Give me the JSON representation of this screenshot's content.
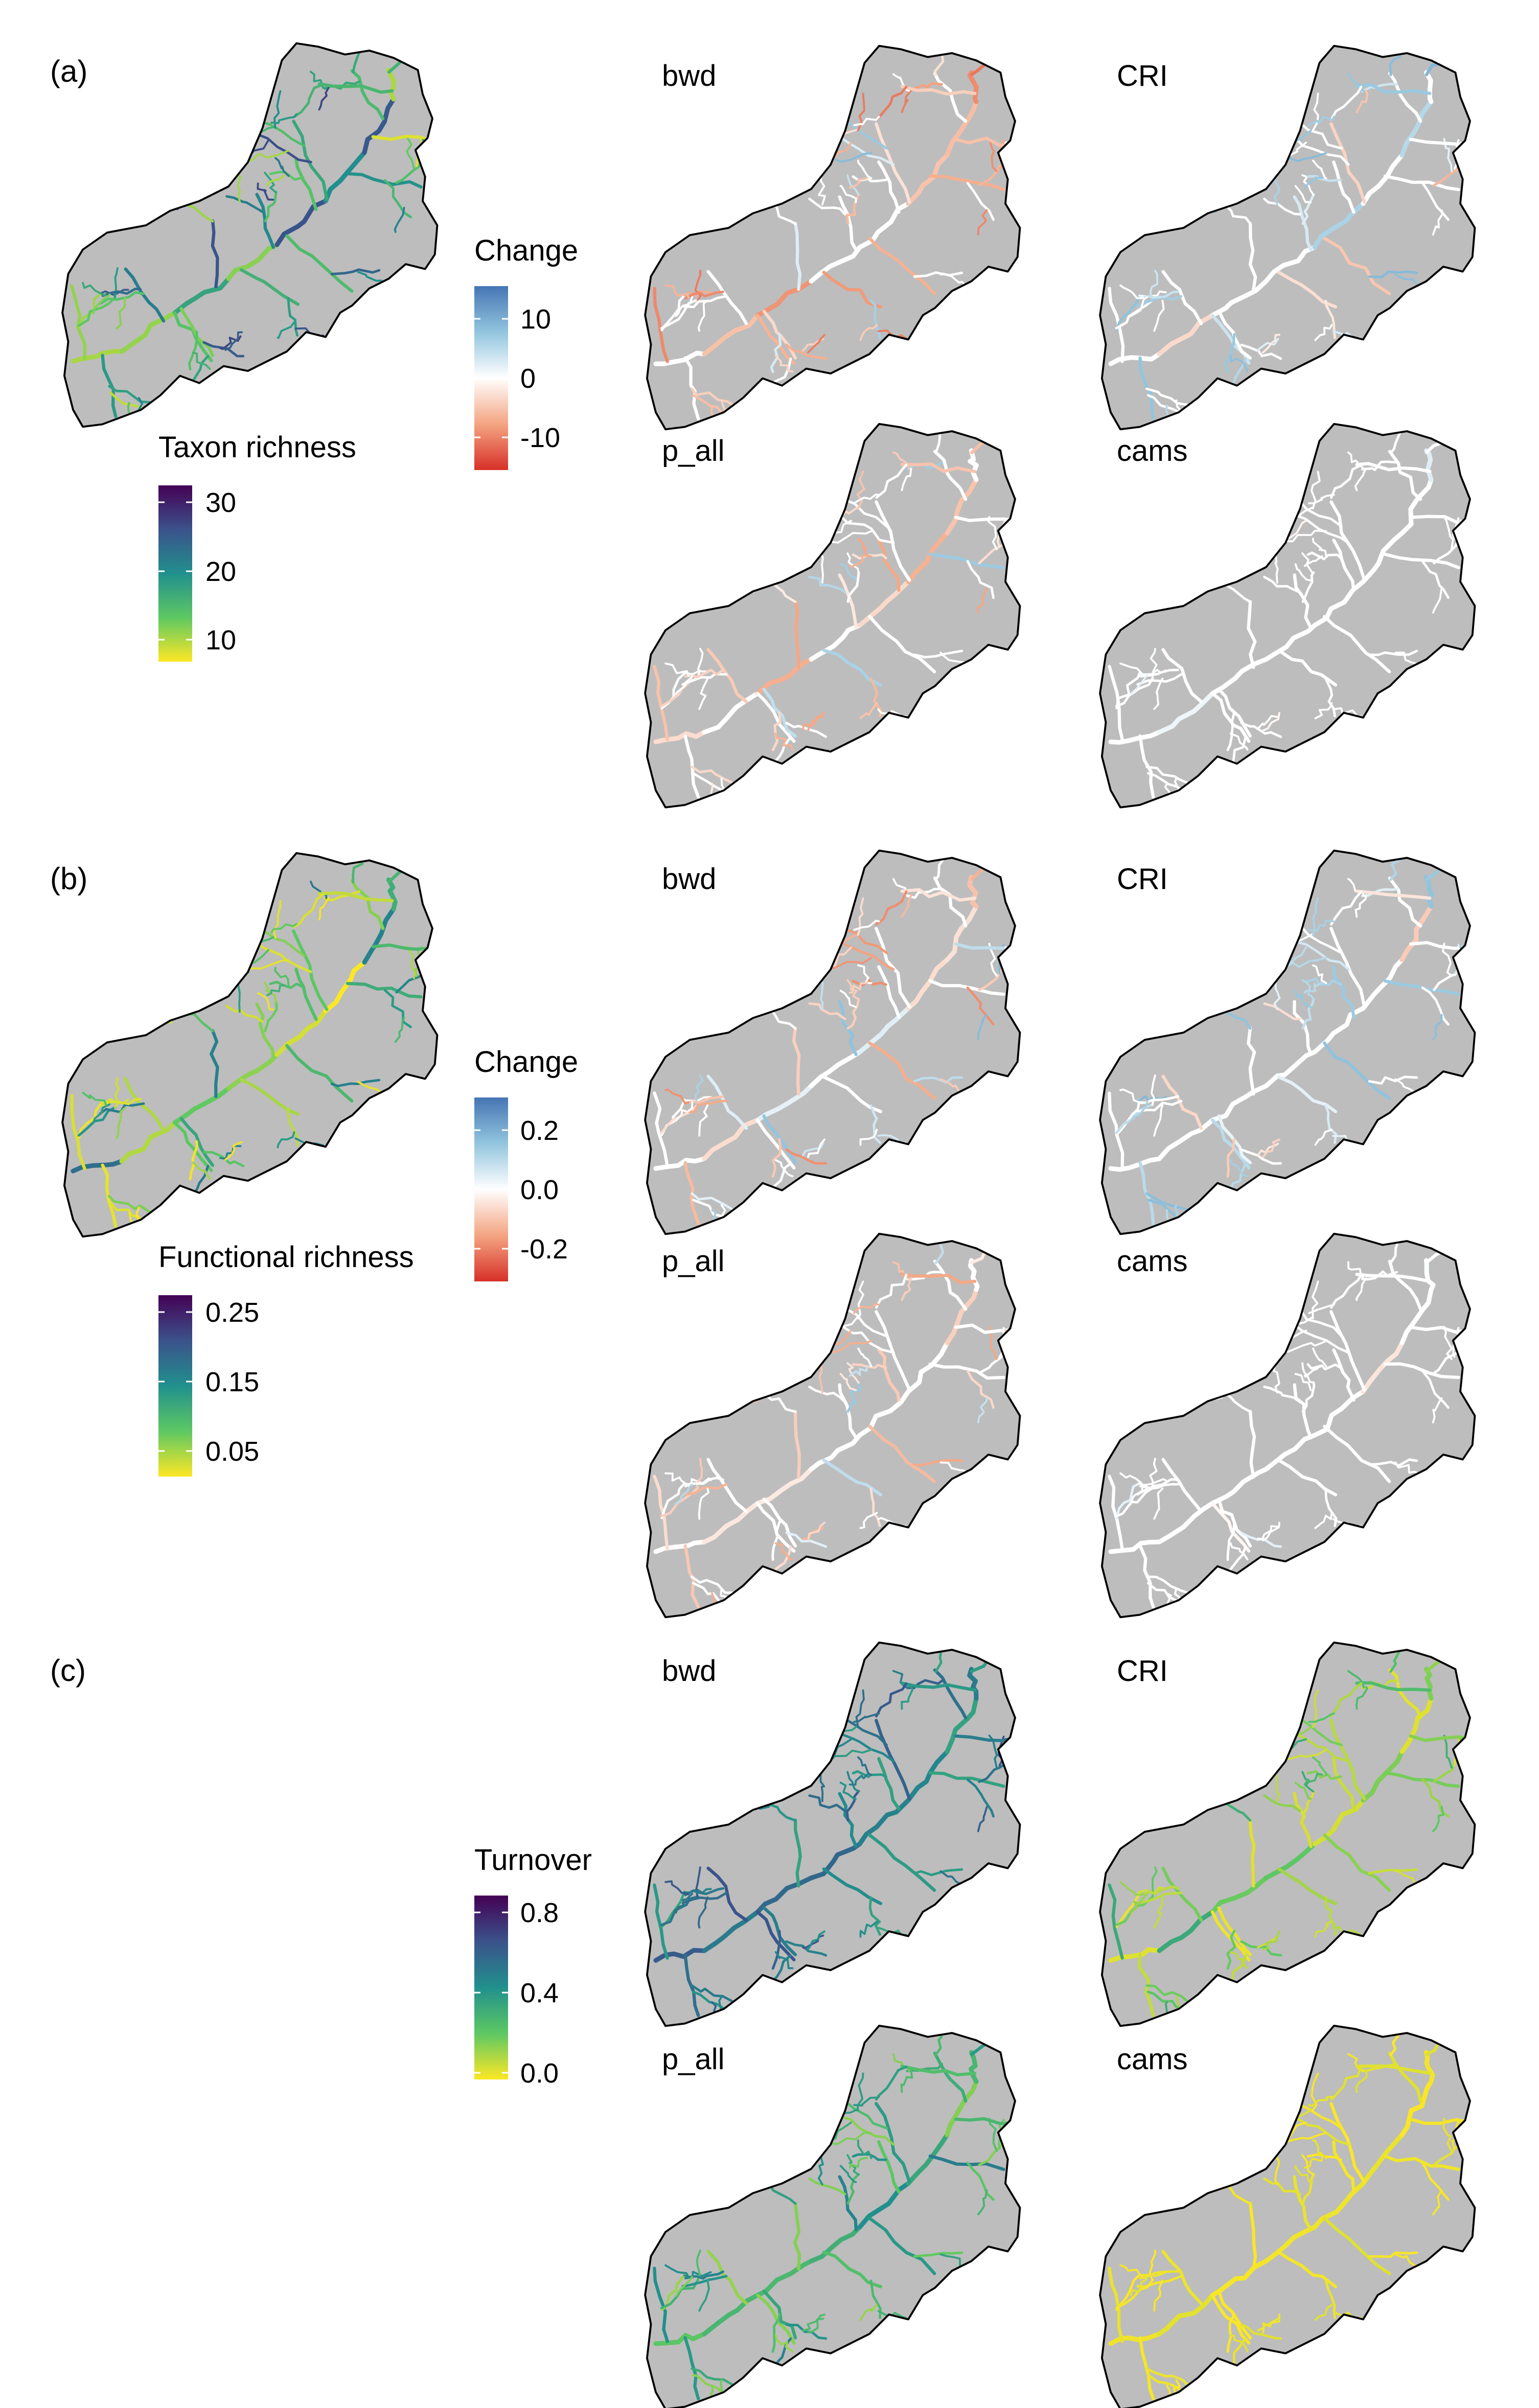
{
  "panels": [
    {
      "label": "(a)",
      "overview": {
        "legend_title": "Taxon richness",
        "ticks": [
          "30",
          "20",
          "10"
        ],
        "colormap": "viridis"
      },
      "change_legend": {
        "title": "Change",
        "ticks": [
          "10",
          "0",
          "-10"
        ],
        "colormap": "diverging-red-blue"
      },
      "maps": [
        {
          "label": "bwd",
          "style": "neg-strong"
        },
        {
          "label": "CRI",
          "style": "pos-mild"
        },
        {
          "label": "p_all",
          "style": "neg-mild"
        },
        {
          "label": "cams",
          "style": "near-zero"
        }
      ]
    },
    {
      "label": "(b)",
      "overview": {
        "legend_title": "Functional richness",
        "ticks": [
          "0.25",
          "0.15",
          "0.05"
        ],
        "colormap": "viridis"
      },
      "change_legend": {
        "title": "Change",
        "ticks": [
          "0.2",
          "0.0",
          "-0.2"
        ],
        "colormap": "diverging-red-blue"
      },
      "maps": [
        {
          "label": "bwd",
          "style": "mixed"
        },
        {
          "label": "CRI",
          "style": "pos-mild"
        },
        {
          "label": "p_all",
          "style": "neg-mild"
        },
        {
          "label": "cams",
          "style": "near-zero"
        }
      ]
    },
    {
      "label": "(c)",
      "turnover_legend": {
        "title": "Turnover",
        "ticks": [
          "0.8",
          "0.4",
          "0.0"
        ],
        "colormap": "viridis"
      },
      "maps": [
        {
          "label": "bwd",
          "style": "turn-high"
        },
        {
          "label": "CRI",
          "style": "turn-mid-low"
        },
        {
          "label": "p_all",
          "style": "turn-mid"
        },
        {
          "label": "cams",
          "style": "turn-zero"
        }
      ]
    }
  ],
  "colors": {
    "basin_fill": "#bdbdbd",
    "basin_outline": "#000000",
    "viridis": [
      "#440154",
      "#3b528b",
      "#21908d",
      "#5dc863",
      "#fde725"
    ],
    "diverging": [
      "#d73027",
      "#f4a582",
      "#ffffff",
      "#92c5de",
      "#4575b4"
    ]
  }
}
